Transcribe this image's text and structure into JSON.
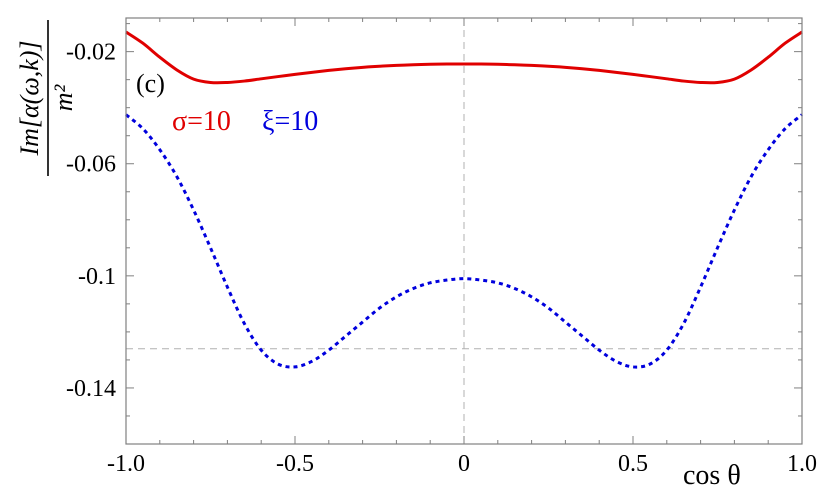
{
  "chart_data": {
    "type": "line",
    "title": "",
    "panel_label": "(c)",
    "xlabel": "cos θ",
    "ylabel": "Im[α(ω,k)] / m²",
    "ylabel_numerator": "Im[α(ω,k)]",
    "ylabel_denominator": "m²",
    "xlim": [
      -1.0,
      1.0
    ],
    "ylim": [
      -0.16,
      -0.008
    ],
    "x_ticks": [
      -1.0,
      -0.5,
      0,
      0.5,
      1.0
    ],
    "x_tick_labels": [
      "-1.0",
      "-0.5",
      "0",
      "0.5",
      "1.0"
    ],
    "y_ticks": [
      -0.02,
      -0.06,
      -0.1,
      -0.14
    ],
    "y_tick_labels": [
      "-0.02",
      "-0.06",
      "-0.1",
      "-0.14"
    ],
    "reference_lines": {
      "x": 0,
      "y": -0.126
    },
    "series": [
      {
        "name": "σ=10",
        "color": "#e00000",
        "style": "solid",
        "x": [
          -1.0,
          -0.95,
          -0.9,
          -0.85,
          -0.8,
          -0.75,
          -0.7,
          -0.65,
          -0.6,
          -0.55,
          -0.5,
          -0.45,
          -0.4,
          -0.35,
          -0.3,
          -0.25,
          -0.2,
          -0.15,
          -0.1,
          -0.05,
          0,
          0.05,
          0.1,
          0.15,
          0.2,
          0.25,
          0.3,
          0.35,
          0.4,
          0.45,
          0.5,
          0.55,
          0.6,
          0.65,
          0.7,
          0.75,
          0.8,
          0.85,
          0.9,
          0.95,
          1.0
        ],
        "y": [
          -0.013,
          -0.017,
          -0.022,
          -0.0265,
          -0.0298,
          -0.031,
          -0.031,
          -0.0305,
          -0.0297,
          -0.0289,
          -0.0281,
          -0.0274,
          -0.0267,
          -0.0261,
          -0.0256,
          -0.0252,
          -0.0249,
          -0.0247,
          -0.0245,
          -0.0244,
          -0.0244,
          -0.0244,
          -0.0245,
          -0.0247,
          -0.0249,
          -0.0252,
          -0.0256,
          -0.0261,
          -0.0267,
          -0.0274,
          -0.0281,
          -0.0289,
          -0.0297,
          -0.0305,
          -0.031,
          -0.031,
          -0.0298,
          -0.0265,
          -0.022,
          -0.017,
          -0.013
        ]
      },
      {
        "name": "ξ=10",
        "color": "#0000dd",
        "style": "dotted",
        "x": [
          -1.0,
          -0.95,
          -0.9,
          -0.85,
          -0.8,
          -0.75,
          -0.7,
          -0.65,
          -0.6,
          -0.55,
          -0.5,
          -0.45,
          -0.4,
          -0.35,
          -0.3,
          -0.25,
          -0.2,
          -0.15,
          -0.1,
          -0.05,
          0,
          0.05,
          0.1,
          0.15,
          0.2,
          0.25,
          0.3,
          0.35,
          0.4,
          0.45,
          0.5,
          0.55,
          0.6,
          0.65,
          0.7,
          0.75,
          0.8,
          0.85,
          0.9,
          0.95,
          1.0
        ],
        "y": [
          -0.0425,
          -0.0475,
          -0.055,
          -0.0645,
          -0.0765,
          -0.09,
          -0.104,
          -0.117,
          -0.1265,
          -0.1315,
          -0.1325,
          -0.1305,
          -0.1265,
          -0.1215,
          -0.1165,
          -0.1115,
          -0.1075,
          -0.1045,
          -0.1025,
          -0.1015,
          -0.101,
          -0.1015,
          -0.1025,
          -0.1045,
          -0.1075,
          -0.1115,
          -0.1165,
          -0.1215,
          -0.1265,
          -0.1305,
          -0.1325,
          -0.1315,
          -0.1265,
          -0.117,
          -0.104,
          -0.09,
          -0.0765,
          -0.0645,
          -0.055,
          -0.0475,
          -0.0425
        ]
      }
    ]
  }
}
